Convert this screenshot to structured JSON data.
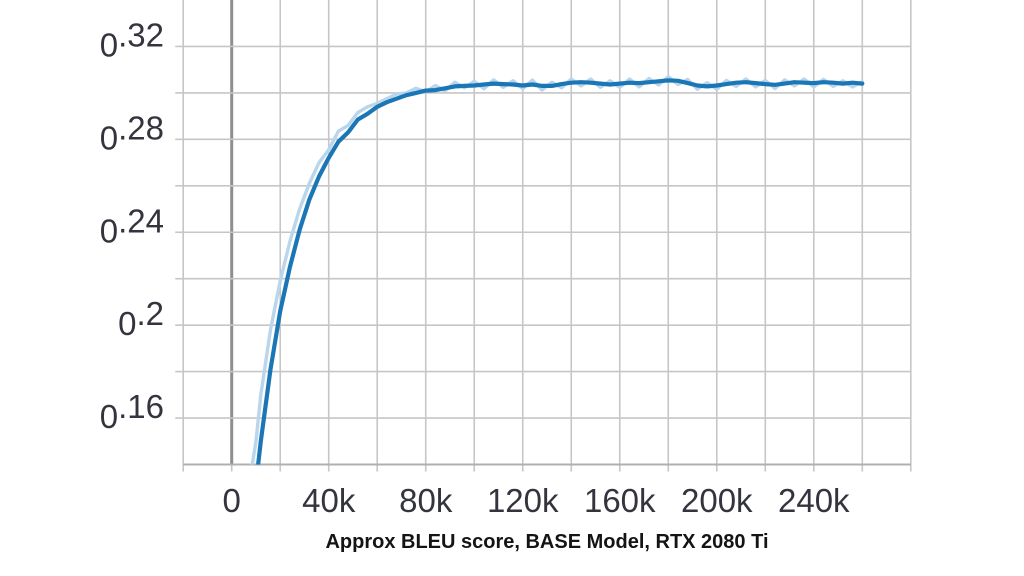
{
  "caption": "Approx BLEU score, BASE Model, RTX 2080 Ti",
  "colors": {
    "background": "#ffffff",
    "grid": "#c6c6c6",
    "zero_line": "#8e8e8e",
    "axis_line": "#b0b0b0",
    "tick_label": "#34343e",
    "caption_text": "#141414"
  },
  "chart_data": {
    "type": "line",
    "title": "Approx BLEU score, BASE Model, RTX 2080 Ti",
    "xlabel": "",
    "ylabel": "",
    "grid": true,
    "legend": false,
    "xlim": [
      -20000,
      280000
    ],
    "ylim": [
      0.14,
      0.34
    ],
    "x_grid_interval": 20000,
    "y_grid_interval": 0.02,
    "x_tick_values": [
      0,
      40000,
      80000,
      120000,
      160000,
      200000,
      240000
    ],
    "x_tick_labels": [
      "0",
      "40k",
      "80k",
      "120k",
      "160k",
      "200k",
      "240k"
    ],
    "y_tick_values": [
      0.32,
      0.28,
      0.24,
      0.2,
      0.16
    ],
    "y_tick_labels": [
      "0.32",
      "0.28",
      "0.24",
      "0.2",
      "0.16"
    ],
    "x": [
      6000,
      8000,
      10000,
      12000,
      16000,
      20000,
      24000,
      28000,
      32000,
      36000,
      40000,
      44000,
      48000,
      52000,
      56000,
      60000,
      64000,
      68000,
      72000,
      76000,
      80000,
      84000,
      88000,
      92000,
      96000,
      100000,
      104000,
      108000,
      112000,
      116000,
      120000,
      124000,
      128000,
      132000,
      136000,
      140000,
      144000,
      148000,
      152000,
      156000,
      160000,
      164000,
      168000,
      172000,
      176000,
      180000,
      184000,
      188000,
      192000,
      196000,
      200000,
      204000,
      208000,
      212000,
      216000,
      220000,
      224000,
      228000,
      232000,
      236000,
      240000,
      244000,
      248000,
      252000,
      256000,
      260000
    ],
    "series": [
      {
        "name": "raw",
        "color": "#b9d6ec",
        "y": [
          0.105,
          0.137,
          0.15,
          0.17,
          0.198,
          0.219,
          0.236,
          0.25,
          0.261,
          0.27,
          0.2755,
          0.2835,
          0.286,
          0.2915,
          0.294,
          0.2955,
          0.2975,
          0.2995,
          0.3,
          0.302,
          0.3005,
          0.3032,
          0.3008,
          0.3046,
          0.3022,
          0.305,
          0.3018,
          0.3056,
          0.3024,
          0.3052,
          0.3018,
          0.3055,
          0.3012,
          0.3046,
          0.3022,
          0.306,
          0.303,
          0.306,
          0.3024,
          0.3052,
          0.3024,
          0.306,
          0.3026,
          0.3062,
          0.3034,
          0.307,
          0.3036,
          0.3058,
          0.3016,
          0.3044,
          0.3016,
          0.3054,
          0.3028,
          0.306,
          0.3026,
          0.3054,
          0.3019,
          0.3056,
          0.303,
          0.306,
          0.3026,
          0.3058,
          0.3028,
          0.3052,
          0.3026,
          0.3048
        ]
      },
      {
        "name": "smoothed",
        "color": "#1b76b6",
        "y": [
          0.089,
          0.112,
          0.132,
          0.15,
          0.181,
          0.206,
          0.225,
          0.241,
          0.254,
          0.264,
          0.272,
          0.279,
          0.283,
          0.2885,
          0.291,
          0.294,
          0.296,
          0.2975,
          0.299,
          0.3,
          0.301,
          0.3012,
          0.302,
          0.3028,
          0.303,
          0.3032,
          0.3036,
          0.304,
          0.3038,
          0.3036,
          0.3032,
          0.3036,
          0.303,
          0.303,
          0.3038,
          0.3044,
          0.3046,
          0.3044,
          0.304,
          0.3036,
          0.304,
          0.3044,
          0.3042,
          0.3046,
          0.305,
          0.3054,
          0.3052,
          0.3042,
          0.3032,
          0.3028,
          0.3032,
          0.3038,
          0.3044,
          0.3046,
          0.3042,
          0.3038,
          0.3035,
          0.304,
          0.3046,
          0.3044,
          0.3042,
          0.3046,
          0.3044,
          0.304,
          0.3044,
          0.304
        ]
      }
    ]
  }
}
